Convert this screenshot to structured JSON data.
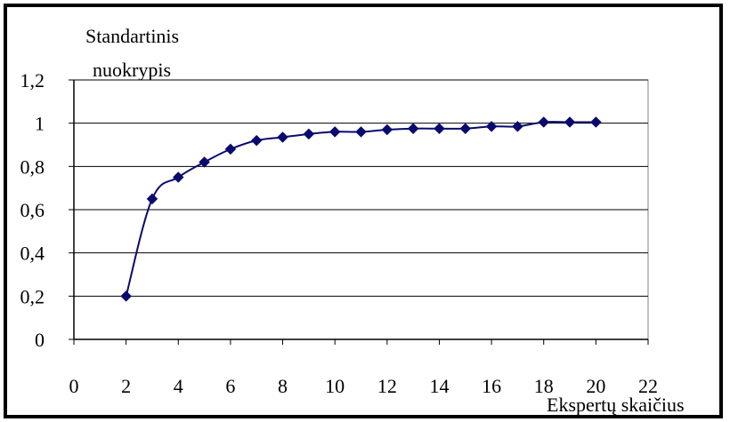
{
  "chart_data": {
    "type": "line",
    "ylabel_line1": "Standartinis",
    "ylabel_line2": "nuokrypis",
    "xlabel": "Ekspertų skaičius",
    "xlim": [
      0,
      22
    ],
    "ylim": [
      0,
      1.2
    ],
    "x_ticks": [
      "0",
      "2",
      "4",
      "6",
      "8",
      "10",
      "12",
      "14",
      "16",
      "18",
      "20",
      "22"
    ],
    "y_ticks": [
      "0",
      "0,2",
      "0,4",
      "0,6",
      "0,8",
      "1",
      "1,2"
    ],
    "grid": "horizontal",
    "marker": "diamond",
    "line_color": "#0a0a6e",
    "series": [
      {
        "x": [
          2,
          3,
          4,
          5,
          6,
          7,
          8,
          9,
          10,
          11,
          12,
          13,
          14,
          15,
          16,
          17,
          18,
          19,
          20
        ],
        "values": [
          0.2,
          0.65,
          0.75,
          0.82,
          0.88,
          0.92,
          0.935,
          0.95,
          0.96,
          0.96,
          0.97,
          0.975,
          0.975,
          0.975,
          0.985,
          0.985,
          1.005,
          1.005,
          1.005
        ]
      }
    ]
  }
}
